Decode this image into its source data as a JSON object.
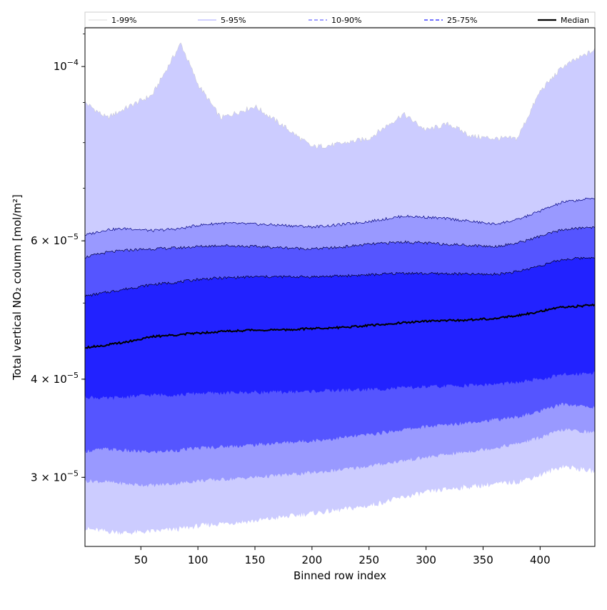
{
  "chart_data": {
    "type": "area",
    "title": "",
    "xlabel": "Binned row index",
    "ylabel": "Total vertical NO₂ column [mol/m²]",
    "xlim": [
      1,
      448
    ],
    "ylim": [
      2.45e-05,
      0.000112
    ],
    "yscale": "log",
    "grid": false,
    "legend_position": "top",
    "x_ticks": [
      50,
      100,
      150,
      200,
      250,
      300,
      350,
      400
    ],
    "y_ticks": [
      {
        "value": 0.0001,
        "mantissa": "",
        "base": "10",
        "exponent": "−4"
      },
      {
        "value": 6e-05,
        "mantissa": "6 × ",
        "base": "10",
        "exponent": "−5"
      },
      {
        "value": 4e-05,
        "mantissa": "4 × ",
        "base": "10",
        "exponent": "−5"
      },
      {
        "value": 3e-05,
        "mantissa": "3 × ",
        "base": "10",
        "exponent": "−5"
      }
    ],
    "x": [
      1,
      20,
      40,
      60,
      85,
      100,
      120,
      150,
      175,
      200,
      220,
      250,
      280,
      300,
      320,
      340,
      360,
      380,
      400,
      420,
      448
    ],
    "bands": [
      {
        "name": "1-99%",
        "color": "#ccccff",
        "line_color": "#cccccc",
        "lower": [
          2.58e-05,
          2.56e-05,
          2.55e-05,
          2.56e-05,
          2.58e-05,
          2.6e-05,
          2.62e-05,
          2.64e-05,
          2.67e-05,
          2.7e-05,
          2.72e-05,
          2.76e-05,
          2.83e-05,
          2.87e-05,
          2.9e-05,
          2.92e-05,
          2.94e-05,
          2.96e-05,
          3.02e-05,
          3.1e-05,
          3.05e-05
        ],
        "upper": [
          9e-05,
          8.6e-05,
          8.9e-05,
          9.2e-05,
          0.000107,
          9.5e-05,
          8.6e-05,
          8.9e-05,
          8.4e-05,
          7.9e-05,
          7.95e-05,
          8.1e-05,
          8.7e-05,
          8.3e-05,
          8.45e-05,
          8.15e-05,
          8.1e-05,
          8.1e-05,
          9.3e-05,
          0.0001,
          0.000105
        ]
      },
      {
        "name": "5-95%",
        "color": "#9999ff",
        "line_color": "#000080",
        "lower": [
          2.97e-05,
          2.96e-05,
          2.94e-05,
          2.93e-05,
          2.95e-05,
          2.97e-05,
          2.98e-05,
          3e-05,
          3.02e-05,
          3.04e-05,
          3.06e-05,
          3.1e-05,
          3.15e-05,
          3.18e-05,
          3.21e-05,
          3.24e-05,
          3.27e-05,
          3.31e-05,
          3.37e-05,
          3.45e-05,
          3.42e-05
        ],
        "upper": [
          6.1e-05,
          6.2e-05,
          6.22e-05,
          6.18e-05,
          6.22e-05,
          6.28e-05,
          6.32e-05,
          6.3e-05,
          6.28e-05,
          6.25e-05,
          6.28e-05,
          6.35e-05,
          6.45e-05,
          6.43e-05,
          6.4e-05,
          6.35e-05,
          6.3e-05,
          6.38e-05,
          6.55e-05,
          6.72e-05,
          6.8e-05
        ]
      },
      {
        "name": "10-90%",
        "color": "#5555ff",
        "line_color": "#000040",
        "lower": [
          3.24e-05,
          3.26e-05,
          3.24e-05,
          3.23e-05,
          3.25e-05,
          3.27e-05,
          3.28e-05,
          3.3e-05,
          3.32e-05,
          3.34e-05,
          3.36e-05,
          3.4e-05,
          3.45e-05,
          3.48e-05,
          3.5e-05,
          3.53e-05,
          3.55e-05,
          3.58e-05,
          3.64e-05,
          3.72e-05,
          3.68e-05
        ],
        "upper": [
          5.72e-05,
          5.8e-05,
          5.84e-05,
          5.86e-05,
          5.88e-05,
          5.9e-05,
          5.92e-05,
          5.9e-05,
          5.88e-05,
          5.86e-05,
          5.88e-05,
          5.94e-05,
          5.98e-05,
          5.96e-05,
          5.94e-05,
          5.92e-05,
          5.9e-05,
          5.96e-05,
          6.08e-05,
          6.2e-05,
          6.25e-05
        ]
      },
      {
        "name": "25-75%",
        "color": "#2222ff",
        "line_color": "#000020",
        "lower": [
          3.8e-05,
          3.78e-05,
          3.8e-05,
          3.82e-05,
          3.82e-05,
          3.84e-05,
          3.84e-05,
          3.85e-05,
          3.85e-05,
          3.86e-05,
          3.87e-05,
          3.88e-05,
          3.9e-05,
          3.91e-05,
          3.92e-05,
          3.93e-05,
          3.94e-05,
          3.96e-05,
          4e-05,
          4.05e-05,
          4.08e-05
        ],
        "upper": [
          5.1e-05,
          5.16e-05,
          5.22e-05,
          5.28e-05,
          5.32e-05,
          5.36e-05,
          5.38e-05,
          5.4e-05,
          5.4e-05,
          5.4e-05,
          5.41e-05,
          5.43e-05,
          5.46e-05,
          5.45e-05,
          5.45e-05,
          5.44e-05,
          5.44e-05,
          5.48e-05,
          5.58e-05,
          5.68e-05,
          5.72e-05
        ]
      }
    ],
    "series": [
      {
        "name": "Median",
        "color": "#000000",
        "values": [
          4.39e-05,
          4.42e-05,
          4.47e-05,
          4.53e-05,
          4.56e-05,
          4.58e-05,
          4.6e-05,
          4.62e-05,
          4.62e-05,
          4.64e-05,
          4.65e-05,
          4.68e-05,
          4.72e-05,
          4.74e-05,
          4.75e-05,
          4.76e-05,
          4.78e-05,
          4.82e-05,
          4.88e-05,
          4.94e-05,
          4.97e-05
        ]
      }
    ],
    "legend": [
      {
        "label": "1-99%",
        "color": "#cccccc",
        "dash": "none",
        "width": 0.8
      },
      {
        "label": "5-95%",
        "color": "#8888ff",
        "dash": "none",
        "width": 0.8
      },
      {
        "label": "10-90%",
        "color": "#6666ff",
        "dash": "5,3",
        "width": 1.2
      },
      {
        "label": "25-75%",
        "color": "#4444ff",
        "dash": "5,3",
        "width": 1.4
      },
      {
        "label": "Median",
        "color": "#000000",
        "dash": "none",
        "width": 2.2
      }
    ]
  }
}
